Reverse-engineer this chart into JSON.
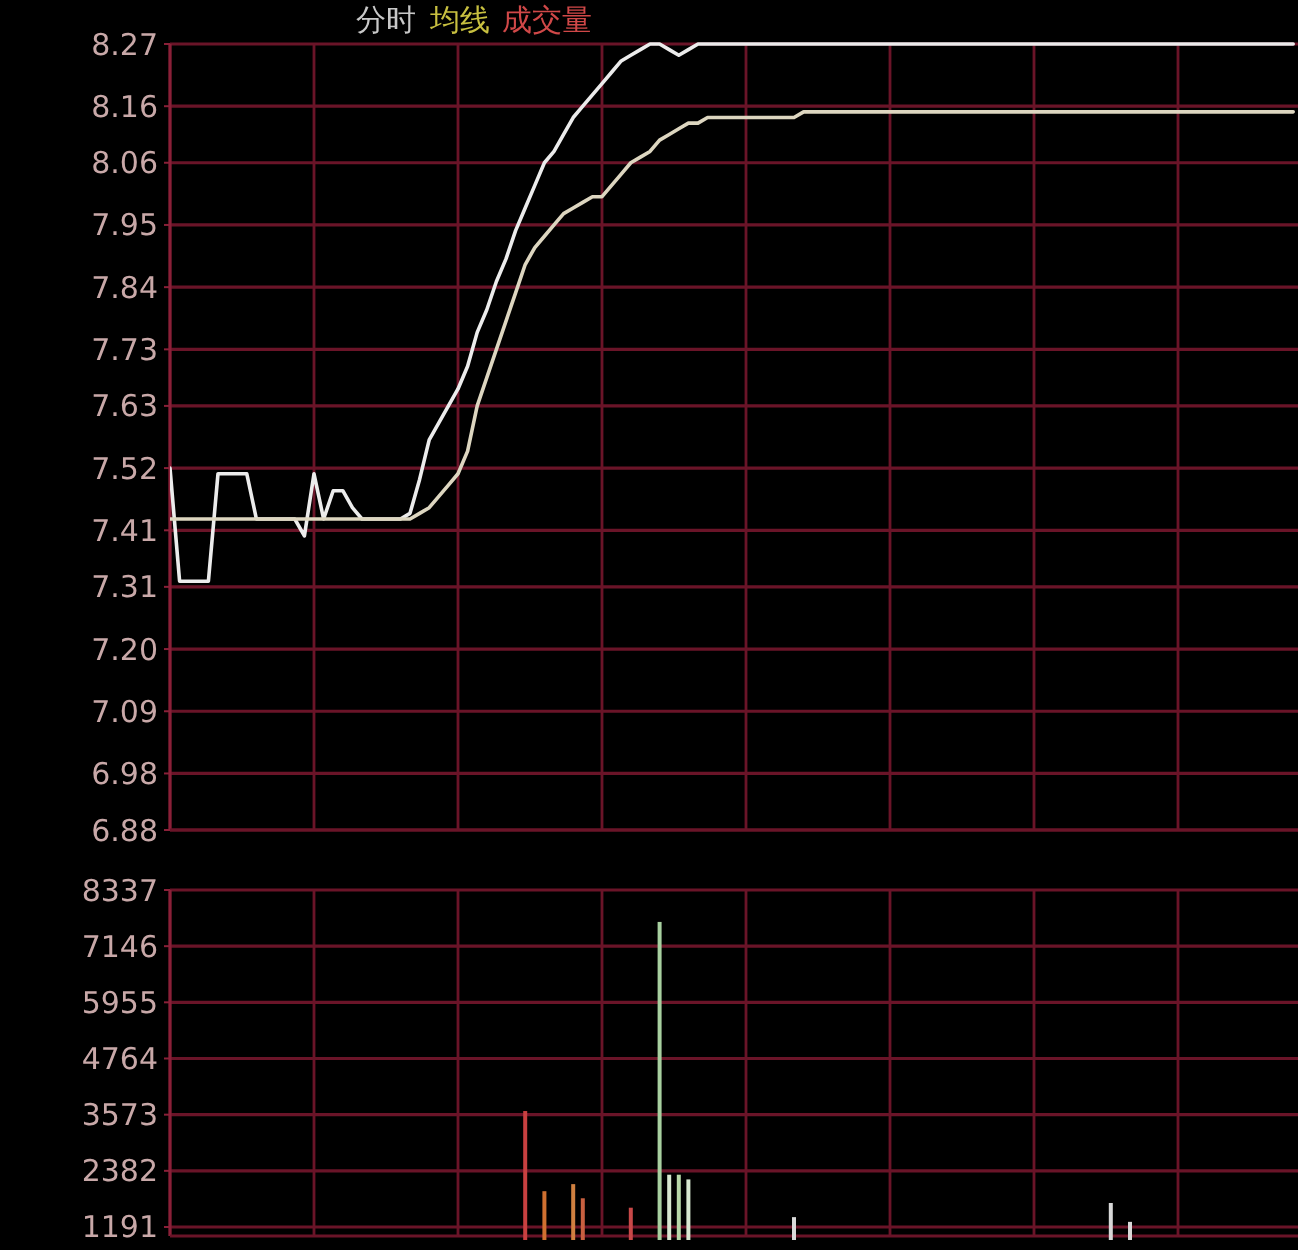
{
  "chart_data": [
    {
      "type": "line",
      "title": "分时",
      "annotations": [
        "均线",
        "成交量"
      ],
      "grid": true,
      "tick_labels": "y",
      "ylim": [
        6.88,
        8.27
      ],
      "yticks": [
        8.27,
        8.16,
        8.06,
        7.95,
        7.84,
        7.73,
        7.63,
        7.52,
        7.41,
        7.31,
        {
          "value": 7.2,
          "label": "7.20"
        },
        7.09,
        6.98,
        6.88
      ],
      "categories": [
        null,
        null,
        null,
        null,
        null,
        null,
        null,
        null,
        null,
        null,
        null,
        null,
        null,
        null,
        null,
        null,
        null,
        null,
        null,
        null,
        null,
        null,
        null,
        null,
        null,
        null,
        null,
        null,
        null,
        null,
        null,
        null,
        null,
        null,
        null,
        null,
        null,
        null,
        null,
        null,
        null,
        null,
        null,
        null,
        null,
        null,
        null,
        null,
        null,
        null,
        null,
        null,
        null,
        null,
        null,
        null,
        null,
        null,
        null,
        null,
        null,
        null,
        null,
        null,
        null,
        null,
        null,
        null,
        null,
        null,
        null,
        null,
        null,
        null,
        null,
        null,
        null,
        null,
        null,
        null,
        null,
        null,
        null,
        null,
        null,
        null,
        null,
        null,
        null,
        null,
        null,
        null,
        null,
        null,
        null,
        null,
        null,
        null,
        null,
        null,
        null,
        null,
        null,
        null,
        null,
        null,
        null,
        null,
        null,
        null,
        null,
        null,
        null,
        null,
        null,
        null,
        null,
        null
      ],
      "series": [
        {
          "color": "#ececec",
          "values": [
            7.52,
            7.32,
            7.32,
            7.32,
            7.32,
            7.51,
            7.51,
            7.51,
            7.51,
            7.43,
            7.43,
            7.43,
            7.43,
            7.43,
            7.4,
            7.51,
            7.43,
            7.48,
            7.48,
            7.45,
            7.43,
            7.43,
            7.43,
            7.43,
            7.43,
            7.44,
            7.5,
            7.57,
            7.6,
            7.63,
            7.66,
            7.7,
            7.76,
            7.8,
            7.85,
            7.89,
            7.94,
            7.98,
            8.02,
            8.06,
            8.08,
            8.11,
            8.14,
            8.16,
            8.18,
            8.2,
            8.22,
            8.24,
            8.25,
            8.26,
            8.27,
            8.27,
            8.26,
            8.25,
            8.26,
            8.27,
            8.27,
            8.27,
            8.27,
            8.27,
            8.27,
            8.27,
            8.27,
            8.27,
            8.27,
            8.27,
            8.27,
            8.27,
            8.27,
            8.27,
            8.27,
            8.27,
            8.27,
            8.27,
            8.27,
            8.27,
            8.27,
            8.27,
            8.27,
            8.27,
            8.27,
            8.27,
            8.27,
            8.27,
            8.27,
            8.27,
            8.27,
            8.27,
            8.27,
            8.27,
            8.27,
            8.27,
            8.27,
            8.27,
            8.27,
            8.27,
            8.27,
            8.27,
            8.27,
            8.27,
            8.27,
            8.27,
            8.27,
            8.27,
            8.27,
            8.27,
            8.27,
            8.27,
            8.27,
            8.27,
            8.27,
            8.27,
            8.27,
            8.27,
            8.27,
            8.27,
            8.27,
            8.27
          ]
        },
        {
          "color": "#ddd6c0",
          "values": [
            7.43,
            7.43,
            7.43,
            7.43,
            7.43,
            7.43,
            7.43,
            7.43,
            7.43,
            7.43,
            7.43,
            7.43,
            7.43,
            7.43,
            7.43,
            7.43,
            7.43,
            7.43,
            7.43,
            7.43,
            7.43,
            7.43,
            7.43,
            7.43,
            7.43,
            7.43,
            7.44,
            7.45,
            7.47,
            7.49,
            7.51,
            7.55,
            7.63,
            7.68,
            7.73,
            7.78,
            7.83,
            7.88,
            7.91,
            7.93,
            7.95,
            7.97,
            7.98,
            7.99,
            8.0,
            8.0,
            8.02,
            8.04,
            8.06,
            8.07,
            8.08,
            8.1,
            8.11,
            8.12,
            8.13,
            8.13,
            8.14,
            8.14,
            8.14,
            8.14,
            8.14,
            8.14,
            8.14,
            8.14,
            8.14,
            8.14,
            8.15,
            8.15,
            8.15,
            8.15,
            8.15,
            8.15,
            8.15,
            8.15,
            8.15,
            8.15,
            8.15,
            8.15,
            8.15,
            8.15,
            8.15,
            8.15,
            8.15,
            8.15,
            8.15,
            8.15,
            8.15,
            8.15,
            8.15,
            8.15,
            8.15,
            8.15,
            8.15,
            8.15,
            8.15,
            8.15,
            8.15,
            8.15,
            8.15,
            8.15,
            8.15,
            8.15,
            8.15,
            8.15,
            8.15,
            8.15,
            8.15,
            8.15,
            8.15,
            8.15,
            8.15,
            8.15,
            8.15,
            8.15,
            8.15,
            8.15,
            8.15,
            8.15
          ]
        }
      ]
    },
    {
      "type": "bar",
      "grid": true,
      "tick_labels": "y",
      "ylim": [
        1000,
        8337
      ],
      "yticks": [
        8337,
        7146,
        5955,
        4764,
        3573,
        2382,
        1191
      ],
      "categories": [
        null,
        null,
        null,
        null,
        null,
        null,
        null,
        null,
        null,
        null,
        null,
        null,
        null,
        null,
        null,
        null,
        null,
        null,
        null,
        null,
        null,
        null,
        null,
        null,
        null,
        null,
        null,
        null,
        null,
        null,
        null,
        null,
        null,
        null,
        null,
        null,
        null,
        null,
        null,
        null,
        null,
        null,
        null,
        null,
        null,
        null,
        null,
        null,
        null,
        null,
        null,
        null,
        null,
        null,
        null,
        null,
        null,
        null,
        null,
        null,
        null,
        null,
        null,
        null,
        null,
        null,
        null,
        null,
        null,
        null,
        null,
        null,
        null,
        null,
        null,
        null,
        null,
        null,
        null,
        null,
        null,
        null,
        null,
        null,
        null,
        null,
        null,
        null,
        null,
        null,
        null,
        null,
        null,
        null,
        null,
        null,
        null,
        null,
        null,
        null,
        null,
        null,
        null,
        null,
        null,
        null,
        null,
        null,
        null,
        null,
        null,
        null,
        null,
        null,
        null,
        null,
        null,
        null
      ],
      "series": [
        {
          "values": [
            null,
            null,
            null,
            null,
            null,
            null,
            null,
            null,
            null,
            null,
            null,
            null,
            null,
            null,
            null,
            null,
            null,
            null,
            null,
            null,
            null,
            null,
            null,
            null,
            null,
            null,
            null,
            null,
            null,
            null,
            null,
            null,
            null,
            null,
            null,
            null,
            null,
            3650,
            null,
            1950,
            null,
            null,
            2100,
            1800,
            null,
            null,
            null,
            null,
            1600,
            null,
            null,
            7660,
            2300,
            2300,
            2200,
            null,
            null,
            null,
            null,
            null,
            null,
            null,
            null,
            null,
            null,
            1400,
            null,
            null,
            null,
            null,
            null,
            null,
            null,
            null,
            null,
            null,
            null,
            null,
            null,
            null,
            null,
            null,
            null,
            null,
            null,
            null,
            null,
            null,
            null,
            null,
            null,
            null,
            null,
            null,
            null,
            null,
            null,
            null,
            1700,
            null,
            1300,
            null,
            null,
            null,
            null,
            null,
            null,
            null,
            null,
            null,
            null,
            null,
            null,
            null,
            null,
            null,
            null,
            null
          ],
          "colors": [
            null,
            null,
            null,
            null,
            null,
            null,
            null,
            null,
            null,
            null,
            null,
            null,
            null,
            null,
            null,
            null,
            null,
            null,
            null,
            null,
            null,
            null,
            null,
            null,
            null,
            null,
            null,
            null,
            null,
            null,
            null,
            null,
            null,
            null,
            null,
            null,
            null,
            "#c84040",
            null,
            "#d07030",
            null,
            null,
            "#d08040",
            "#c86040",
            null,
            null,
            null,
            null,
            "#c84848",
            null,
            null,
            "#a8d0a0",
            "#d8e8d0",
            "#b8d8a8",
            "#d8e8d0",
            null,
            null,
            null,
            null,
            null,
            null,
            null,
            null,
            null,
            null,
            "#d8d8d8",
            null,
            null,
            null,
            null,
            null,
            null,
            null,
            null,
            null,
            null,
            null,
            null,
            null,
            null,
            null,
            null,
            null,
            null,
            null,
            null,
            null,
            null,
            null,
            null,
            null,
            null,
            null,
            null,
            null,
            null,
            null,
            null,
            "#d8d8d8",
            null,
            "#d8d8d8",
            null,
            null,
            null,
            null,
            null,
            null,
            null,
            null,
            null,
            null,
            null,
            null,
            null,
            null,
            null,
            null,
            null
          ]
        }
      ]
    }
  ]
}
